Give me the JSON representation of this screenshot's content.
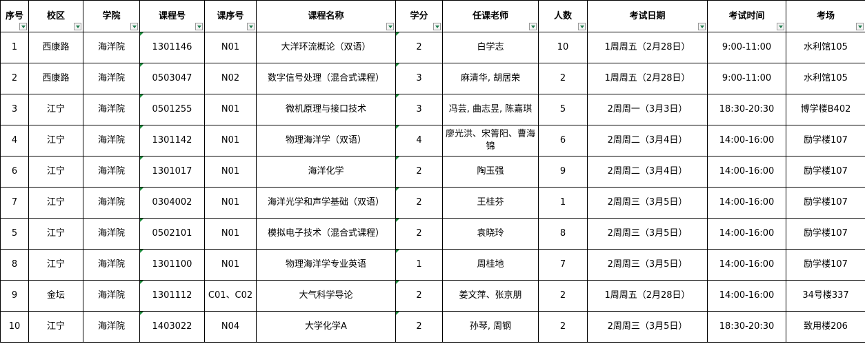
{
  "table": {
    "header": [
      "序号",
      "校区",
      "学院",
      "课程号",
      "课序号",
      "课程名称",
      "学分",
      "任课老师",
      "人数",
      "考试日期",
      "考试时间",
      "考场"
    ],
    "rows": [
      [
        1,
        "西康路",
        "海洋院",
        "1301146",
        "N01",
        "大洋环流概论（双语）",
        2,
        "白学志",
        10,
        "1周周五（2月28日）",
        "9:00-11:00",
        "水利馆105"
      ],
      [
        2,
        "西康路",
        "海洋院",
        "0503047",
        "N02",
        "数字信号处理（混合式课程）",
        3,
        "麻清华, 胡居荣",
        2,
        "1周周五（2月28日）",
        "9:00-11:00",
        "水利馆105"
      ],
      [
        3,
        "江宁",
        "海洋院",
        "0501255",
        "N01",
        "微机原理与接口技术",
        3,
        "冯芸, 曲志昱, 陈嘉琪",
        5,
        "2周周一（3月3日）",
        "18:30-20:30",
        "博学楼B402"
      ],
      [
        4,
        "江宁",
        "海洋院",
        "1301142",
        "N01",
        "物理海洋学（双语）",
        4,
        "廖光洪、宋箐阳、曹海锦",
        6,
        "2周周二（3月4日）",
        "14:00-16:00",
        "励学楼107"
      ],
      [
        6,
        "江宁",
        "海洋院",
        "1301017",
        "N01",
        "海洋化学",
        2,
        "陶玉强",
        9,
        "2周周二（3月4日）",
        "14:00-16:00",
        "励学楼107"
      ],
      [
        7,
        "江宁",
        "海洋院",
        "0304002",
        "N01",
        "海洋光学和声学基础（双语）",
        2,
        "王桂芬",
        1,
        "2周周三（3月5日）",
        "14:00-16:00",
        "励学楼107"
      ],
      [
        5,
        "江宁",
        "海洋院",
        "0502101",
        "N01",
        "模拟电子技术（混合式课程）",
        2,
        "袁晓玲",
        8,
        "2周周三（3月5日）",
        "14:00-16:00",
        "励学楼107"
      ],
      [
        8,
        "江宁",
        "海洋院",
        "1301100",
        "N01",
        "物理海洋学专业英语",
        1,
        "周桂地",
        7,
        "2周周三（3月5日）",
        "14:00-16:00",
        "励学楼107"
      ],
      [
        9,
        "金坛",
        "海洋院",
        "1301112",
        "C01、C02",
        "大气科学导论",
        2,
        "姜文萍、张京朋",
        2,
        "1周周五（2月28日）",
        "14:00-16:00",
        "34号楼337"
      ],
      [
        10,
        "江宁",
        "海洋院",
        "1403022",
        "N04",
        "大学化学A",
        2,
        "孙琴, 周钢",
        2,
        "2周周三（3月5日）",
        "18:30-20:30",
        "致用楼206"
      ]
    ]
  }
}
